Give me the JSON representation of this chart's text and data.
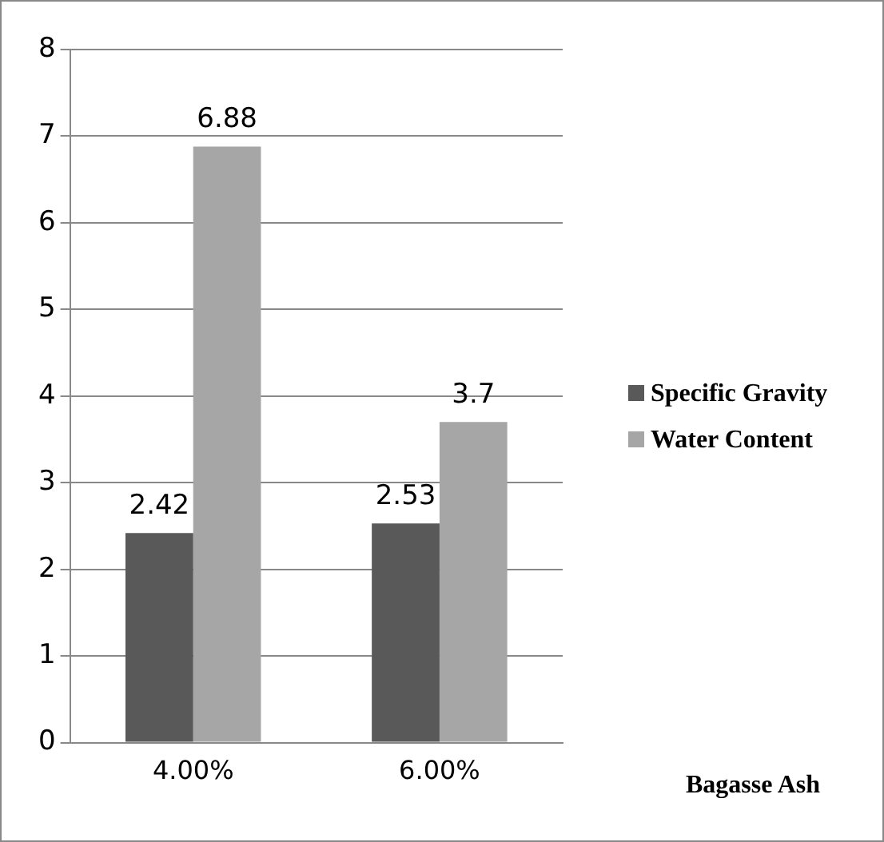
{
  "chart_data": {
    "type": "bar",
    "xlabel": "Bagasse Ash",
    "categories": [
      "4.00%",
      "6.00%"
    ],
    "series": [
      {
        "name": "Specific Gravity",
        "color": "#595959",
        "values": [
          2.42,
          2.53
        ]
      },
      {
        "name": "Water Content",
        "color": "#a6a6a6",
        "values": [
          6.88,
          3.7
        ]
      }
    ],
    "ylim": [
      0,
      8
    ],
    "yticks": [
      0,
      1,
      2,
      3,
      4,
      5,
      6,
      7,
      8
    ],
    "grid": "y",
    "legend": "right",
    "data_labels": true
  }
}
